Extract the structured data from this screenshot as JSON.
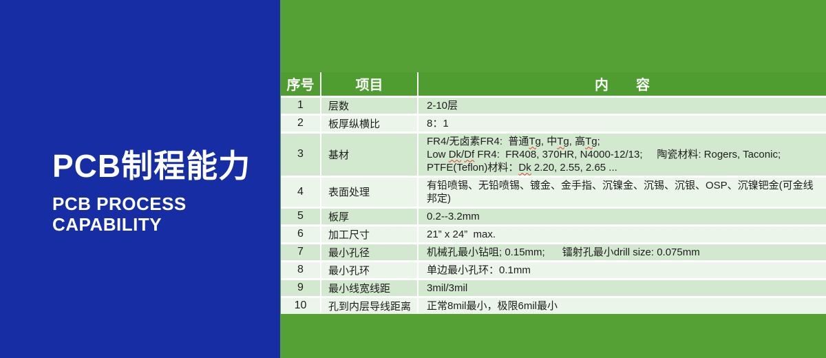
{
  "colors": {
    "blue": "#172da3",
    "green": "#55a135",
    "header_green": "#4f9d31",
    "row_odd": "#d3e9cf",
    "row_even": "#ecf5ea",
    "text_dark": "#1d1d1d",
    "squiggle": "#e03a2f"
  },
  "left_panel": {
    "title_zh": "PCB制程能力",
    "subtitle_line1": "PCB PROCESS",
    "subtitle_line2": "CAPABILITY"
  },
  "table": {
    "headers": [
      "序号",
      "项目",
      "内　　容"
    ],
    "rows": [
      {
        "no": "1",
        "item": "层数",
        "lines": [
          [
            "2-10层"
          ]
        ]
      },
      {
        "no": "2",
        "item": "板厚纵横比",
        "lines": [
          [
            "8：1"
          ]
        ]
      },
      {
        "no": "3",
        "item": "基材",
        "lines": [
          [
            "FR4/无卤素FR4:  普通",
            {
              "t": "Tg",
              "sq": true
            },
            ", 中",
            {
              "t": "Tg",
              "sq": true
            },
            ", 高",
            {
              "t": "Tg",
              "sq": true
            },
            ";"
          ],
          [
            "Low ",
            {
              "t": "Dk",
              "sq": true
            },
            "/",
            {
              "t": "Df",
              "sq": true
            },
            " FR4:  FR408, 370HR, N4000-12/13;     陶瓷材料: Rogers, Taconic;"
          ],
          [
            "PTFE(Teflon)材料：",
            {
              "t": "Dk",
              "sq": true
            },
            " 2.20, 2.55, 2.65 ..."
          ]
        ]
      },
      {
        "no": "4",
        "item": "表面处理",
        "lines": [
          [
            "有铅喷锡、无铅喷锡、镀金、金手指、沉镍金、沉锡、沉银、OSP、沉镍钯金(可金线邦定)"
          ]
        ]
      },
      {
        "no": "5",
        "item": "板厚",
        "lines": [
          [
            "0.2--3.2mm"
          ]
        ]
      },
      {
        "no": "6",
        "item": "加工尺寸",
        "lines": [
          [
            "21” x 24”  max."
          ]
        ]
      },
      {
        "no": "7",
        "item": "最小孔径",
        "lines": [
          [
            "机械孔最小钻咀; 0.15mm;      镭射孔最小drill size: 0.075mm"
          ]
        ]
      },
      {
        "no": "8",
        "item": "最小孔环",
        "lines": [
          [
            "单边最小孔环：0.1mm"
          ]
        ]
      },
      {
        "no": "9",
        "item": "最小线宽线距",
        "lines": [
          [
            "3mil/3mil"
          ]
        ]
      },
      {
        "no": "10",
        "item": "孔到内层导线距离",
        "lines": [
          [
            "正常8mil最小，极限6mil最小"
          ]
        ]
      }
    ]
  }
}
